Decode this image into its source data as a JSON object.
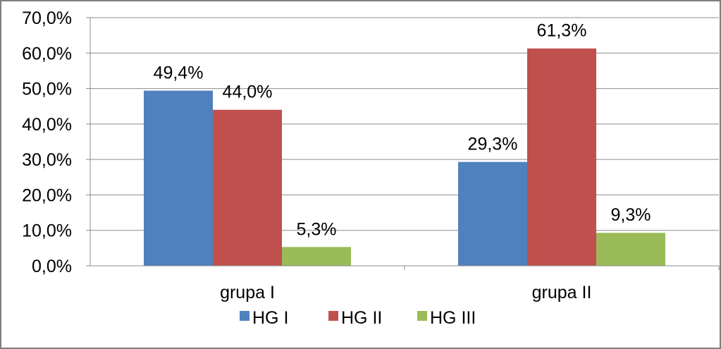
{
  "chart_data": {
    "type": "bar",
    "categories": [
      "grupa I",
      "grupa II"
    ],
    "series": [
      {
        "name": "HG I",
        "values": [
          49.4,
          29.3
        ],
        "labels": [
          "49,4%",
          "29,3%"
        ],
        "color": "#4f81bd"
      },
      {
        "name": "HG II",
        "values": [
          44.0,
          61.3
        ],
        "labels": [
          "44,0%",
          "61,3%"
        ],
        "color": "#c0504d"
      },
      {
        "name": "HG III",
        "values": [
          5.3,
          9.3
        ],
        "labels": [
          "5,3%",
          "9,3%"
        ],
        "color": "#9bbb59"
      }
    ],
    "ylim": [
      0,
      70
    ],
    "yticks": [
      0,
      10,
      20,
      30,
      40,
      50,
      60,
      70
    ],
    "ytick_labels": [
      "0,0%",
      "10,0%",
      "20,0%",
      "30,0%",
      "40,0%",
      "50,0%",
      "60,0%",
      "70,0%"
    ],
    "grid": true,
    "legend_position": "bottom",
    "title": "",
    "xlabel": "",
    "ylabel": ""
  }
}
